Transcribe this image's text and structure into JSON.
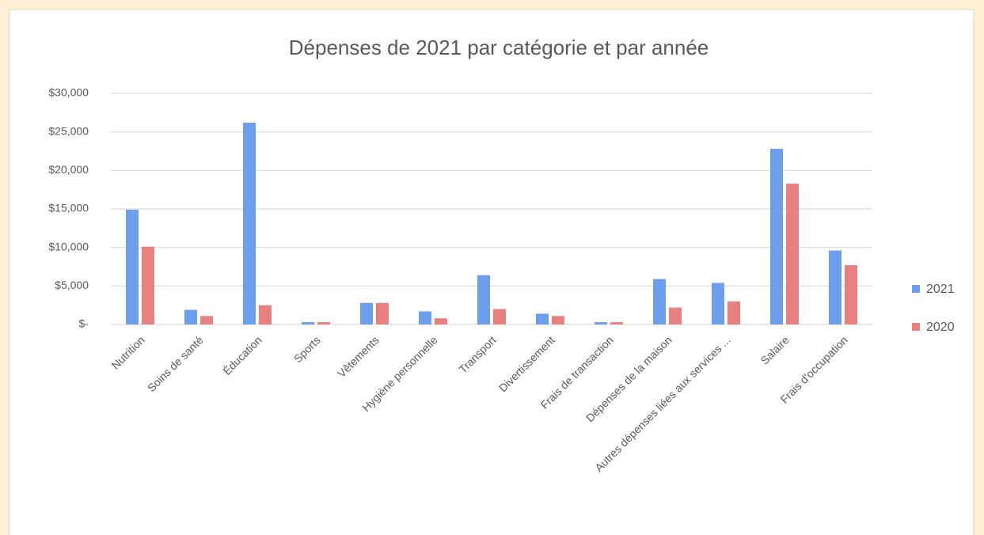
{
  "chart_data": {
    "type": "bar",
    "title": "Dépenses de 2021 par catégorie et par année",
    "categories": [
      "Nutrition",
      "Soins de santé",
      "Éducation",
      "Sports",
      "Vêtements",
      "Hygiène personnelle",
      "Transport",
      "Divertissement",
      "Frais de transaction",
      "Dépenses de la maison",
      "Autres dépenses liées aux services ...",
      "Salaire",
      "Frais d'occupation"
    ],
    "series": [
      {
        "name": "2021",
        "color": "#6d9eeb",
        "values": [
          14900,
          1900,
          26200,
          300,
          2800,
          1700,
          6400,
          1400,
          300,
          5900,
          5400,
          22800,
          9600
        ]
      },
      {
        "name": "2020",
        "color": "#e88080",
        "values": [
          10100,
          1100,
          2500,
          300,
          2800,
          800,
          2000,
          1100,
          300,
          2200,
          3000,
          18300,
          7700
        ]
      }
    ],
    "ylim": [
      0,
      30000
    ],
    "yticks": [
      {
        "value": 0,
        "label": "$-"
      },
      {
        "value": 5000,
        "label": "$5,000"
      },
      {
        "value": 10000,
        "label": "$10,000"
      },
      {
        "value": 15000,
        "label": "$15,000"
      },
      {
        "value": 20000,
        "label": "$20,000"
      },
      {
        "value": 25000,
        "label": "$25,000"
      },
      {
        "value": 30000,
        "label": "$30,000"
      }
    ],
    "grid": true,
    "legend": "right"
  }
}
